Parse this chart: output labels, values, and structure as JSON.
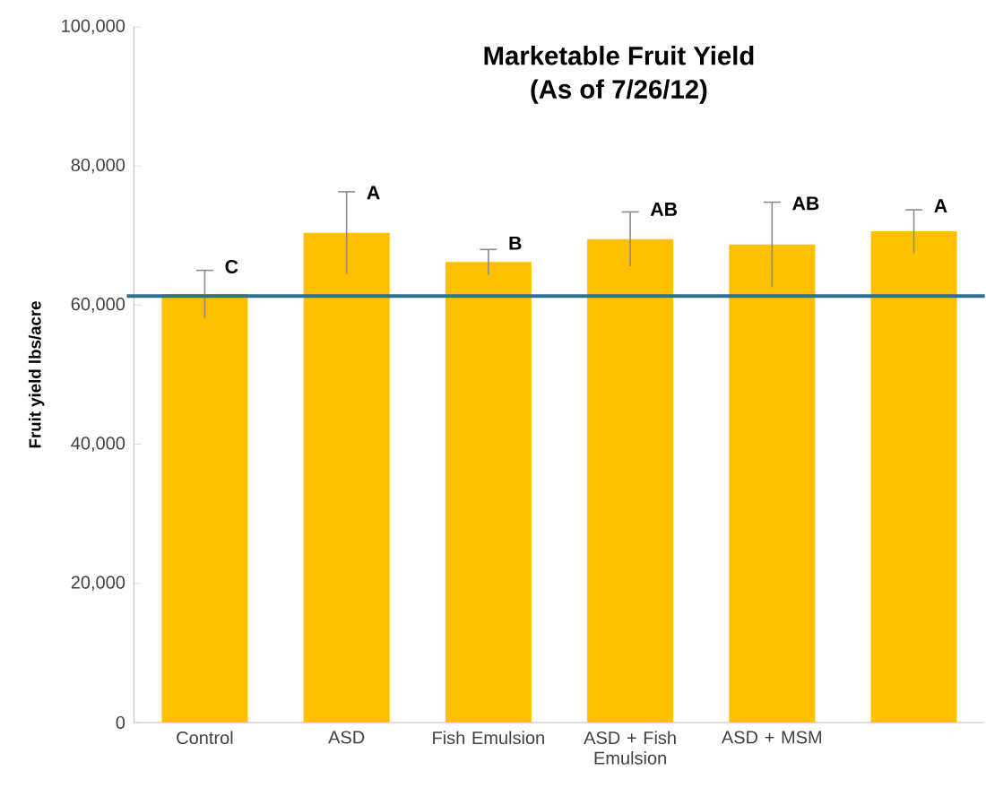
{
  "chart_data": {
    "type": "bar",
    "title": "Marketable Fruit Yield",
    "subtitle": "(As of 7/26/12)",
    "ylabel": "Fruit yield lbs/acre",
    "categories": [
      "Control",
      "ASD",
      "Fish Emulsion",
      "ASD + Fish Emulsion",
      "ASD + MSM",
      null
    ],
    "values": [
      61600,
      70400,
      66200,
      69500,
      68700,
      70600
    ],
    "errors": [
      3400,
      5900,
      1800,
      3900,
      6100,
      3100
    ],
    "value_labels": [
      "C",
      "A",
      "B",
      "AB",
      "AB",
      "A"
    ],
    "color": "#ffc000",
    "ylim": [
      0,
      100000
    ],
    "yticks": [
      {
        "value": 0,
        "label": "0"
      },
      {
        "value": 20000,
        "label": "20,000"
      },
      {
        "value": 40000,
        "label": "40,000"
      },
      {
        "value": 60000,
        "label": "60,000"
      },
      {
        "value": 80000,
        "label": "80,000"
      },
      {
        "value": 100000,
        "label": "100,000"
      }
    ],
    "ref_lines": [
      {
        "axis": "y",
        "value": 61300,
        "color": "#2e6f95"
      }
    ],
    "grid": false
  }
}
